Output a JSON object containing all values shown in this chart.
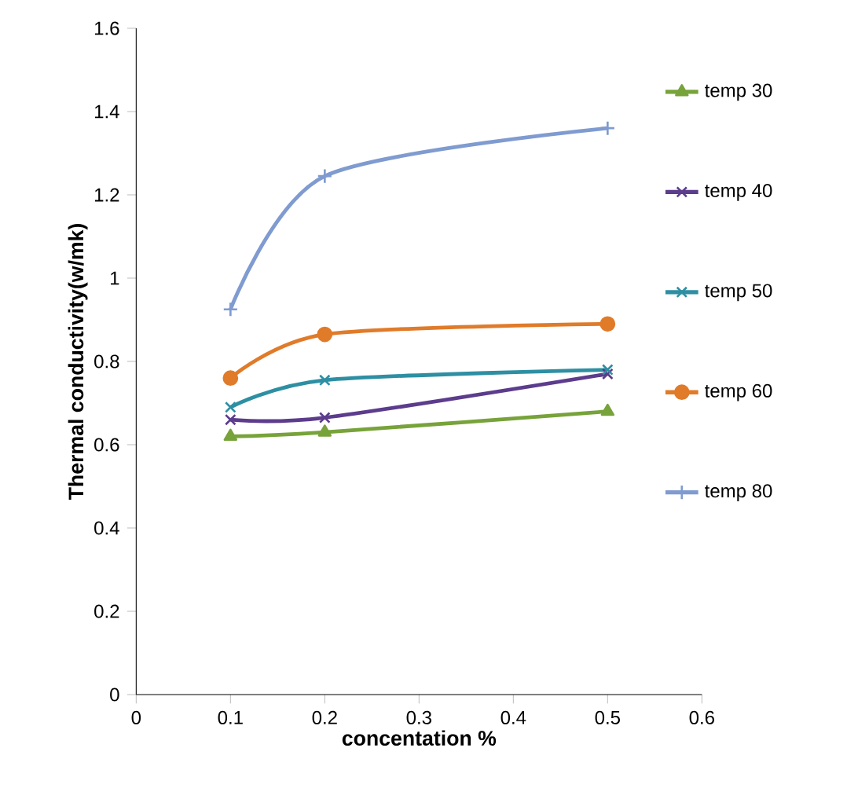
{
  "chart_data": {
    "type": "line",
    "xlabel": "concentation %",
    "ylabel": "Thermal conductivity(w/mk)",
    "x": [
      0.1,
      0.2,
      0.5
    ],
    "series": [
      {
        "name": "temp 30",
        "color": "#77a33a",
        "marker": "triangle",
        "values": [
          0.62,
          0.63,
          0.68
        ]
      },
      {
        "name": "temp 40",
        "color": "#5c3c8c",
        "marker": "cross",
        "values": [
          0.66,
          0.665,
          0.77
        ]
      },
      {
        "name": "temp 50",
        "color": "#2e8fa3",
        "marker": "cross",
        "values": [
          0.69,
          0.755,
          0.78
        ]
      },
      {
        "name": "temp 60",
        "color": "#e07b2a",
        "marker": "circle",
        "values": [
          0.76,
          0.865,
          0.89
        ]
      },
      {
        "name": "temp 80",
        "color": "#7f9bd0",
        "marker": "plus",
        "values": [
          0.925,
          1.245,
          1.36
        ]
      }
    ],
    "xlim": [
      0,
      0.6
    ],
    "xticks": [
      0,
      0.1,
      0.2,
      0.3,
      0.4,
      0.5,
      0.6
    ],
    "ylim": [
      0,
      1.6
    ],
    "yticks": [
      0,
      0.2,
      0.4,
      0.6,
      0.8,
      1,
      1.2,
      1.4,
      1.6
    ],
    "grid": false,
    "legend": "right"
  }
}
